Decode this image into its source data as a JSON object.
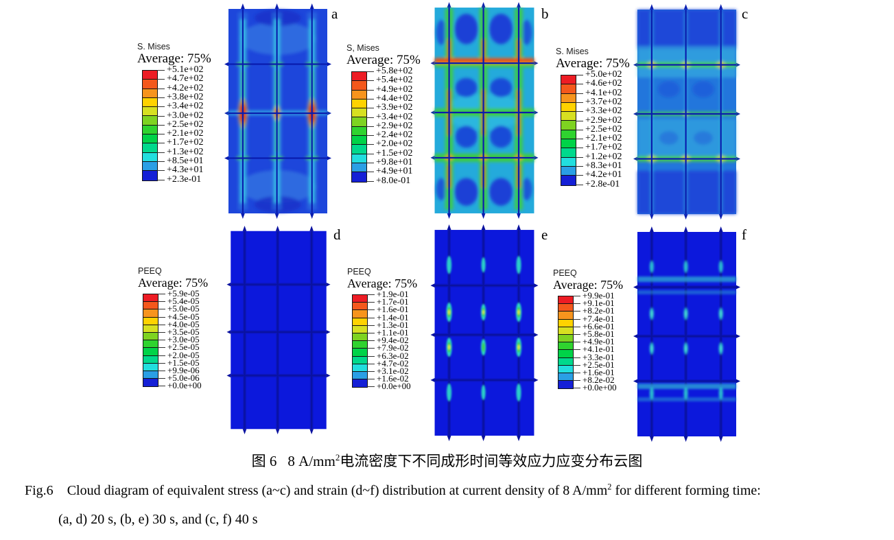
{
  "figure": {
    "caption_zh": {
      "label": "图 6",
      "pre_sup": "8 A/mm",
      "sup": "2",
      "post_sup": "电流密度下不同成形时间等效应力应变分布云图"
    },
    "caption_en": {
      "label": "Fig.6",
      "pre_sup": "Cloud diagram of equivalent stress (a~c) and strain (d~f) distribution at current density of 8 A/mm",
      "sup": "2",
      "post_sup": " for different forming time:",
      "line2": "(a, d) 20 s, (b, e) 30 s, and (c, f) 40 s"
    }
  },
  "palette": [
    "#ed1c24",
    "#f4581c",
    "#f7941d",
    "#ffd200",
    "#d7e021",
    "#7ed321",
    "#2fd32f",
    "#00d348",
    "#00d98c",
    "#22dede",
    "#2a9fe5",
    "#1520d6"
  ],
  "panels": [
    {
      "letter": "a",
      "variable": "S. Mises",
      "average": "Average: 75%",
      "ticks": [
        "+5.1e+02",
        "+4.7e+02",
        "+4.2e+02",
        "+3.8e+02",
        "+3.4e+02",
        "+3.0e+02",
        "+2.5e+02",
        "+2.1e+02",
        "+1.7e+02",
        "+1.3e+02",
        "+8.5e+01",
        "+4.3e+01",
        "+2.3e-01"
      ]
    },
    {
      "letter": "b",
      "variable": "S, Mises",
      "average": "Average: 75%",
      "ticks": [
        "+5.8e+02",
        "+5.4e+02",
        "+4.9e+02",
        "+4.4e+02",
        "+3.9e+02",
        "+3.4e+02",
        "+2.9e+02",
        "+2.4e+02",
        "+2.0e+02",
        "+1.5e+02",
        "+9.8e+01",
        "+4.9e+01",
        "+8.0e-01"
      ]
    },
    {
      "letter": "c",
      "variable": "S. Mises",
      "average": "Average: 75%",
      "ticks": [
        "+5.0e+02",
        "+4.6e+02",
        "+4.1e+02",
        "+3.7e+02",
        "+3.3e+02",
        "+2.9e+02",
        "+2.5e+02",
        "+2.1e+02",
        "+1.7e+02",
        "+1.2e+02",
        "+8.3e+01",
        "+4.2e+01",
        "+2.8e-01"
      ]
    },
    {
      "letter": "d",
      "variable": "PEEQ",
      "average": "Average: 75%",
      "ticks": [
        "+5.9e-05",
        "+5.4e-05",
        "+5.0e-05",
        "+4.5e-05",
        "+4.0e-05",
        "+3.5e-05",
        "+3.0e-05",
        "+2.5e-05",
        "+2.0e-05",
        "+1.5e-05",
        "+9.9e-06",
        "+5.0e-06",
        "+0.0e+00"
      ]
    },
    {
      "letter": "e",
      "variable": "PEEQ",
      "average": "Average: 75%",
      "ticks": [
        "+1.9e-01",
        "+1.7e-01",
        "+1.6e-01",
        "+1.4e-01",
        "+1.3e-01",
        "+1.1e-01",
        "+9.4e-02",
        "+7.9e-02",
        "+6.3e-02",
        "+4.7e-02",
        "+3.1e-02",
        "+1.6e-02",
        "+0.0e+00"
      ]
    },
    {
      "letter": "f",
      "variable": "PEEQ",
      "average": "Average: 75%",
      "ticks": [
        "+9.9e-01",
        "+9.1e-01",
        "+8.2e-01",
        "+7.4e-01",
        "+6.6e-01",
        "+5.8e-01",
        "+4.9e-01",
        "+4.1e-01",
        "+3.3e-01",
        "+2.5e-01",
        "+1.6e-01",
        "+8.2e-02",
        "+0.0e+00"
      ]
    }
  ]
}
